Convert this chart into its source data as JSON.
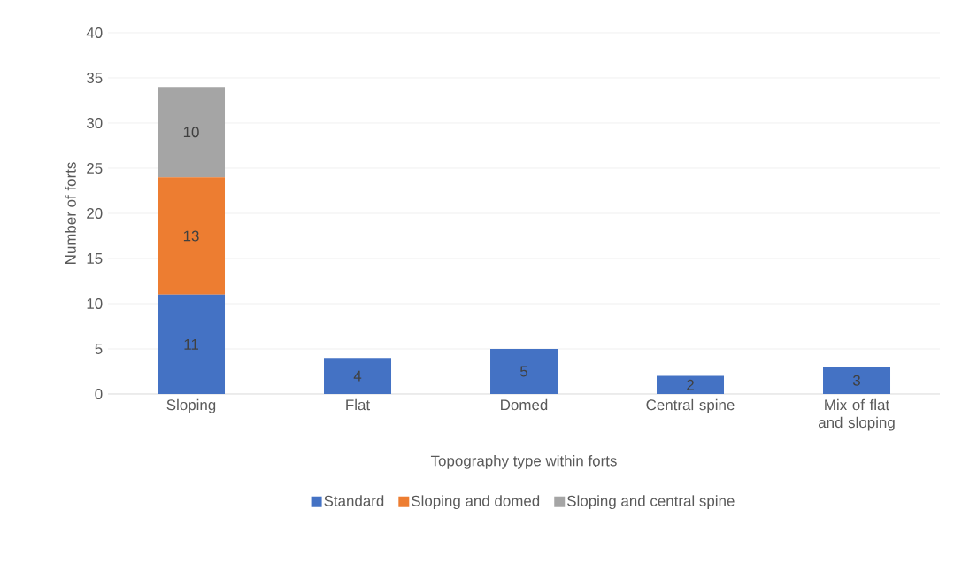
{
  "chart_data": {
    "type": "bar",
    "stacked": true,
    "xlabel": "Topography type within forts",
    "ylabel": "Number of forts",
    "categories": [
      "Sloping",
      "Flat",
      "Domed",
      "Central spine",
      "Mix of flat and sloping"
    ],
    "series": [
      {
        "name": "Standard",
        "color": "#4472c4",
        "values": [
          11,
          4,
          5,
          2,
          3
        ]
      },
      {
        "name": "Sloping and domed",
        "color": "#ed7d31",
        "values": [
          13,
          null,
          null,
          null,
          null
        ]
      },
      {
        "name": "Sloping and central spine",
        "color": "#a5a5a5",
        "values": [
          10,
          null,
          null,
          null,
          null
        ]
      }
    ],
    "ylim": [
      0,
      40
    ],
    "yticks": [
      0,
      5,
      10,
      15,
      20,
      25,
      30,
      35,
      40
    ],
    "grid": "y",
    "legend": "bottom",
    "data_labels": true
  }
}
